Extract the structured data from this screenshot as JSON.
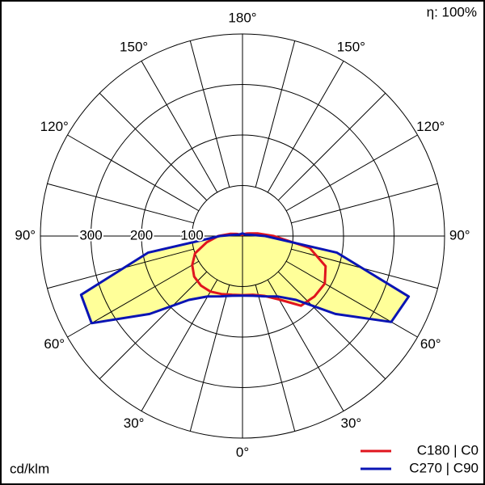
{
  "chart_data": {
    "type": "polar",
    "annotation": "η: 100%",
    "unit_label": "cd/klm",
    "x": [
      -180,
      -170,
      -160,
      -150,
      -140,
      -130,
      -120,
      -110,
      -100,
      -90,
      -80,
      -70,
      -60,
      -50,
      -40,
      -30,
      -20,
      -10,
      0,
      10,
      20,
      30,
      40,
      50,
      60,
      70,
      80,
      90,
      100,
      110,
      120,
      130,
      140,
      150,
      160,
      170,
      180
    ],
    "series": [
      {
        "name": "C180 | C0",
        "color": "#e0141e",
        "values": [
          3,
          3,
          3,
          3,
          4,
          4,
          6,
          12,
          25,
          48,
          72,
          100,
          115,
          125,
          128,
          127,
          122,
          118,
          117,
          118,
          126,
          145,
          180,
          186,
          188,
          175,
          135,
          62,
          30,
          15,
          10,
          7,
          5,
          4,
          3,
          3,
          3
        ]
      },
      {
        "name": "C270 | C90",
        "color": "#0a14b4",
        "values": [
          5,
          5,
          5,
          5,
          5,
          6,
          6,
          8,
          15,
          45,
          190,
          340,
          345,
          240,
          165,
          138,
          127,
          120,
          118,
          120,
          127,
          138,
          165,
          240,
          340,
          350,
          190,
          45,
          15,
          8,
          6,
          5,
          5,
          5,
          5,
          5,
          5
        ]
      }
    ],
    "fill_color": "#ffff99",
    "rlim": [
      0,
      400
    ],
    "rticks": [
      100,
      200,
      300
    ],
    "xticks": [
      {
        "value": -150,
        "label": "150°"
      },
      {
        "value": -120,
        "label": "120°"
      },
      {
        "value": -90,
        "label": "90°"
      },
      {
        "value": -60,
        "label": "60°"
      },
      {
        "value": -30,
        "label": "30°"
      },
      {
        "value": 0,
        "label": "0°"
      },
      {
        "value": 30,
        "label": "30°"
      },
      {
        "value": 60,
        "label": "60°"
      },
      {
        "value": 90,
        "label": "90°"
      },
      {
        "value": 120,
        "label": "120°"
      },
      {
        "value": 150,
        "label": "150°"
      },
      {
        "value": 180,
        "label": "180°"
      }
    ],
    "angle_grid": 15
  }
}
